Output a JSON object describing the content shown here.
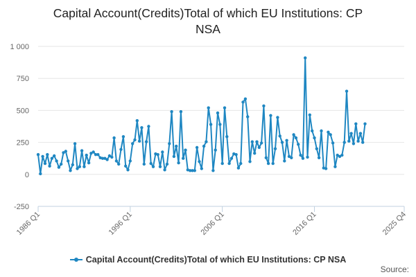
{
  "chart_data": {
    "type": "line",
    "title_lines": [
      "Capital Account(Credits)Total of which EU Institutions: CP",
      "NSA"
    ],
    "xlabel": "",
    "ylabel": "",
    "x_ticks": [
      "1986 Q1",
      "1996 Q1",
      "2006 Q1",
      "2016 Q1",
      "2025 Q4"
    ],
    "y_ticks": [
      "1 000",
      "750",
      "500",
      "250",
      "0",
      "-250"
    ],
    "y_tick_values": [
      1000,
      750,
      500,
      250,
      0,
      -250
    ],
    "ylim": [
      -250,
      1000
    ],
    "x_start": "1986 Q1",
    "xlim_quarters": [
      0,
      159
    ],
    "grid": true,
    "legend_position": "bottom",
    "series": [
      {
        "name": "Capital Account(Credits)Total of which EU Institutions: CP NSA",
        "color": "#1f87c2",
        "values": [
          155,
          5,
          140,
          85,
          155,
          65,
          125,
          145,
          105,
          55,
          80,
          170,
          180,
          105,
          30,
          75,
          240,
          45,
          60,
          185,
          60,
          150,
          90,
          165,
          175,
          155,
          155,
          130,
          125,
          125,
          115,
          145,
          135,
          285,
          105,
          80,
          195,
          295,
          65,
          35,
          105,
          240,
          270,
          420,
          260,
          365,
          80,
          255,
          375,
          85,
          60,
          160,
          155,
          60,
          175,
          35,
          80,
          240,
          490,
          140,
          220,
          90,
          490,
          125,
          190,
          35,
          30,
          30,
          30,
          210,
          100,
          45,
          220,
          255,
          520,
          390,
          30,
          190,
          480,
          390,
          85,
          520,
          295,
          85,
          125,
          160,
          155,
          50,
          85,
          565,
          590,
          450,
          100,
          255,
          165,
          255,
          210,
          245,
          535,
          130,
          85,
          460,
          85,
          200,
          445,
          300,
          250,
          105,
          265,
          140,
          130,
          310,
          285,
          235,
          150,
          125,
          910,
          135,
          465,
          340,
          285,
          200,
          130,
          340,
          50,
          45,
          330,
          310,
          245,
          60,
          150,
          140,
          150,
          250,
          650,
          260,
          320,
          240,
          395,
          260,
          320,
          250,
          395
        ]
      }
    ]
  },
  "footer": {
    "source_label": "Source:"
  }
}
